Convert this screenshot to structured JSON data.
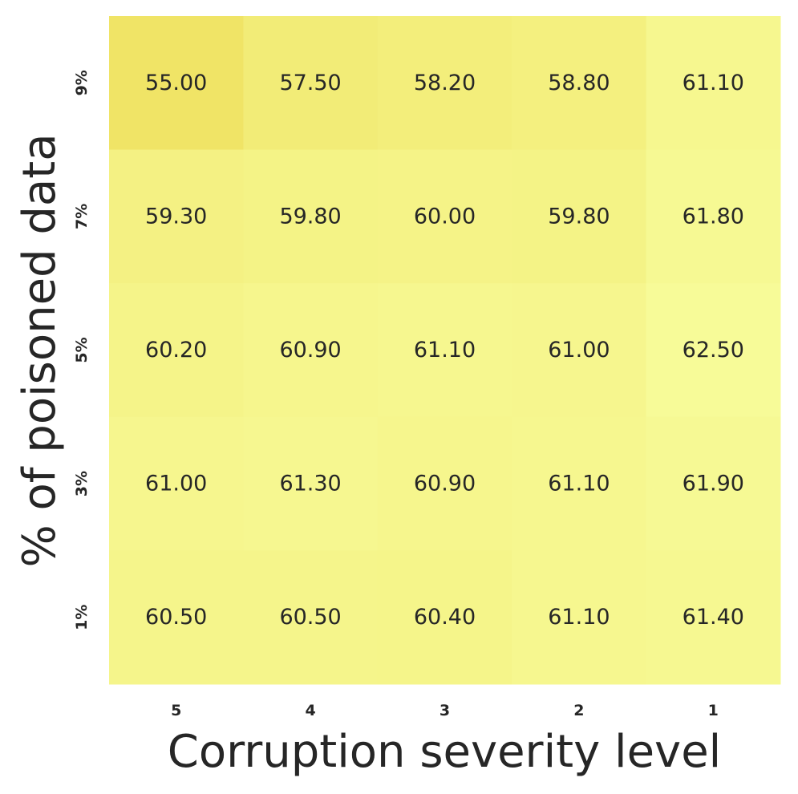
{
  "chart_data": {
    "type": "heatmap",
    "title": "",
    "xlabel": "Corruption severity level",
    "ylabel": "% of poisoned data",
    "x_categories": [
      "5",
      "4",
      "3",
      "2",
      "1"
    ],
    "y_categories": [
      "9%",
      "7%",
      "5%",
      "3%",
      "1%"
    ],
    "values": [
      [
        55.0,
        57.5,
        58.2,
        58.8,
        61.1
      ],
      [
        59.3,
        59.8,
        60.0,
        59.8,
        61.8
      ],
      [
        60.2,
        60.9,
        61.1,
        61.0,
        62.5
      ],
      [
        61.0,
        61.3,
        60.9,
        61.1,
        61.9
      ],
      [
        60.5,
        60.5,
        60.4,
        61.1,
        61.4
      ]
    ],
    "value_format": "2 decimals",
    "colormap": {
      "low": "#f0e466",
      "high": "#f7fb98"
    },
    "show_values": true,
    "colorbar": false
  }
}
